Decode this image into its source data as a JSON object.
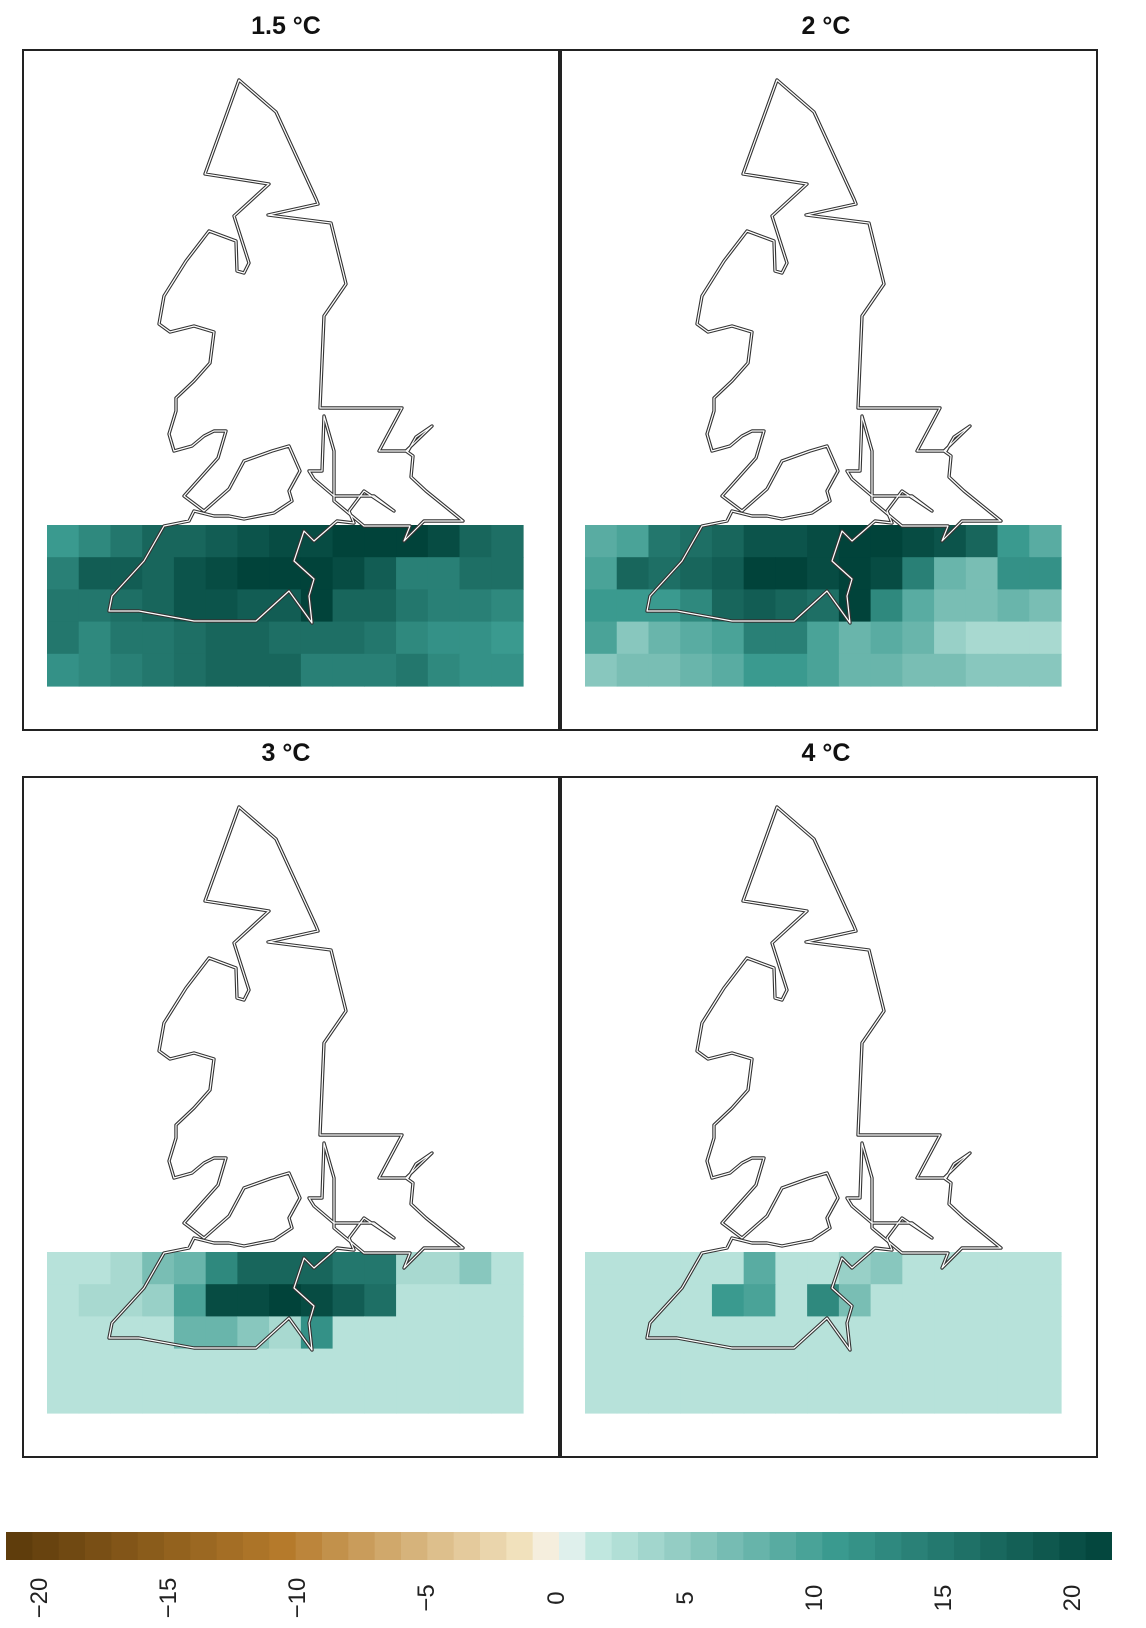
{
  "panels": [
    {
      "title": "1.5 °C"
    },
    {
      "title": "2 °C"
    },
    {
      "title": "3 °C"
    },
    {
      "title": "4 °C"
    }
  ],
  "colorbar": {
    "ticks": [
      "−20",
      "−15",
      "−10",
      "−5",
      "0",
      "5",
      "10",
      "15",
      "20"
    ],
    "range": [
      -20,
      20
    ],
    "colors": {
      "brown_dark": "#5b3a0a",
      "brown_mid": "#b57a2b",
      "tan_light": "#f4e6c3",
      "neutral": "#f5f5f5",
      "teal_light": "#c7ebe3",
      "teal_mid": "#3a9a8f",
      "teal_dark": "#01433a"
    }
  },
  "chart_data": [
    {
      "type": "heatmap",
      "title": "1.5 °C",
      "values": [
        [
          10,
          12,
          14,
          16,
          16,
          17,
          18,
          19,
          19,
          20,
          20,
          20,
          19,
          16,
          15
        ],
        [
          13,
          17,
          17,
          16,
          18,
          19,
          20,
          20,
          20,
          19,
          17,
          13,
          13,
          15,
          15
        ],
        [
          14,
          14,
          15,
          16,
          18,
          18,
          17,
          17,
          20,
          16,
          16,
          14,
          13,
          13,
          12
        ],
        [
          14,
          12,
          14,
          14,
          15,
          16,
          16,
          15,
          15,
          15,
          14,
          12,
          11,
          11,
          10
        ],
        [
          11,
          12,
          13,
          14,
          15,
          16,
          16,
          16,
          13,
          13,
          13,
          14,
          12,
          11,
          11
        ]
      ]
    },
    {
      "type": "heatmap",
      "title": "2 °C",
      "values": [
        [
          8,
          9,
          14,
          15,
          16,
          18,
          18,
          19,
          20,
          20,
          19,
          18,
          16,
          10,
          8
        ],
        [
          9,
          16,
          15,
          16,
          17,
          20,
          20,
          19,
          20,
          19,
          13,
          7,
          6,
          11,
          11
        ],
        [
          10,
          10,
          10,
          12,
          16,
          17,
          16,
          15,
          20,
          12,
          8,
          6,
          6,
          7,
          6
        ],
        [
          9,
          5,
          7,
          8,
          9,
          13,
          13,
          9,
          7,
          8,
          7,
          4,
          3,
          3,
          3
        ],
        [
          5,
          6,
          6,
          7,
          8,
          10,
          10,
          9,
          7,
          7,
          6,
          6,
          5,
          5,
          5
        ]
      ]
    },
    {
      "type": "heatmap",
      "title": "3 °C",
      "values": [
        [
          2,
          2,
          3,
          6,
          7,
          12,
          16,
          16,
          16,
          14,
          14,
          3,
          3,
          5,
          2
        ],
        [
          2,
          3,
          3,
          4,
          9,
          19,
          19,
          20,
          19,
          17,
          15,
          2,
          2,
          2,
          2
        ],
        [
          2,
          2,
          2,
          2,
          7,
          7,
          5,
          3,
          11,
          2,
          2,
          2,
          2,
          2,
          2
        ],
        [
          2,
          2,
          2,
          2,
          2,
          2,
          2,
          2,
          2,
          2,
          2,
          2,
          2,
          2,
          2
        ],
        [
          2,
          2,
          2,
          2,
          2,
          2,
          2,
          2,
          2,
          2,
          2,
          2,
          2,
          2,
          2
        ]
      ]
    },
    {
      "type": "heatmap",
      "title": "4 °C",
      "values": [
        [
          2,
          2,
          2,
          2,
          2,
          8,
          2,
          2,
          4,
          5,
          2,
          2,
          2,
          2,
          2
        ],
        [
          2,
          2,
          2,
          2,
          10,
          9,
          2,
          12,
          6,
          2,
          2,
          2,
          2,
          2,
          2
        ],
        [
          2,
          2,
          2,
          2,
          2,
          2,
          2,
          2,
          2,
          2,
          2,
          2,
          2,
          2,
          2
        ],
        [
          2,
          2,
          2,
          2,
          2,
          2,
          2,
          2,
          2,
          2,
          2,
          2,
          2,
          2,
          2
        ],
        [
          2,
          2,
          2,
          2,
          2,
          2,
          2,
          2,
          2,
          2,
          2,
          2,
          2,
          2,
          2
        ]
      ]
    }
  ]
}
